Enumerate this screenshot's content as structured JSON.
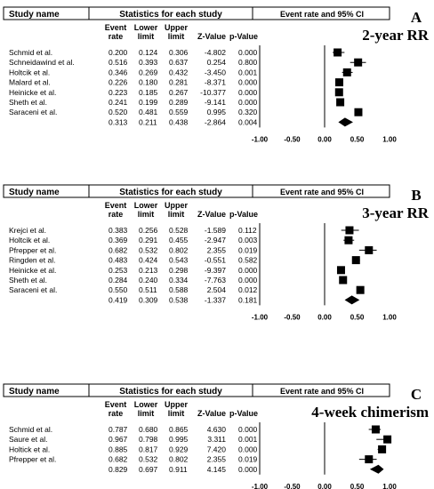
{
  "headers": {
    "study_name": "Study name",
    "stats": "Statistics for each study",
    "plot": "Event rate and 95% CI",
    "event_rate": [
      "Event",
      "rate"
    ],
    "lower_limit": [
      "Lower",
      "limit"
    ],
    "upper_limit": [
      "Upper",
      "limit"
    ],
    "z_value": "Z-Value",
    "p_value": "p-Value"
  },
  "chart_data": [
    {
      "type": "forest",
      "panel": "A",
      "title": "2-year RR",
      "ticks": [
        "-1.00",
        "-0.50",
        "0.00",
        "0.50",
        "1.00"
      ],
      "xlim": [
        -1,
        1
      ],
      "studies": [
        {
          "name": "Schmid et al.",
          "er": "0.200",
          "ll": "0.124",
          "ul": "0.306",
          "z": "-4.802",
          "p": "0.000"
        },
        {
          "name": "Schneidawind et al.",
          "er": "0.516",
          "ll": "0.393",
          "ul": "0.637",
          "z": "0.254",
          "p": "0.800"
        },
        {
          "name": "Holtcik et al.",
          "er": "0.346",
          "ll": "0.269",
          "ul": "0.432",
          "z": "-3.450",
          "p": "0.001"
        },
        {
          "name": "Malard et al.",
          "er": "0.226",
          "ll": "0.180",
          "ul": "0.281",
          "z": "-8.371",
          "p": "0.000"
        },
        {
          "name": "Heinicke et al.",
          "er": "0.223",
          "ll": "0.185",
          "ul": "0.267",
          "z": "-10.377",
          "p": "0.000"
        },
        {
          "name": "Sheth et al.",
          "er": "0.241",
          "ll": "0.199",
          "ul": "0.289",
          "z": "-9.141",
          "p": "0.000"
        },
        {
          "name": "Saraceni et al.",
          "er": "0.520",
          "ll": "0.481",
          "ul": "0.559",
          "z": "0.995",
          "p": "0.320"
        }
      ],
      "summary": {
        "er": "0.313",
        "ll": "0.211",
        "ul": "0.438",
        "z": "-2.864",
        "p": "0.004"
      }
    },
    {
      "type": "forest",
      "panel": "B",
      "title": "3-year RR",
      "ticks": [
        "-1.00",
        "-0.50",
        "0.00",
        "0.50",
        "1.00"
      ],
      "xlim": [
        -1,
        1
      ],
      "studies": [
        {
          "name": "Krejci et al.",
          "er": "0.383",
          "ll": "0.256",
          "ul": "0.528",
          "z": "-1.589",
          "p": "0.112"
        },
        {
          "name": "Holtcik et al.",
          "er": "0.369",
          "ll": "0.291",
          "ul": "0.455",
          "z": "-2.947",
          "p": "0.003"
        },
        {
          "name": "Pfrepper et al.",
          "er": "0.682",
          "ll": "0.532",
          "ul": "0.802",
          "z": "2.355",
          "p": "0.019"
        },
        {
          "name": "Ringden et al.",
          "er": "0.483",
          "ll": "0.424",
          "ul": "0.543",
          "z": "-0.551",
          "p": "0.582"
        },
        {
          "name": "Heinicke et al.",
          "er": "0.253",
          "ll": "0.213",
          "ul": "0.298",
          "z": "-9.397",
          "p": "0.000"
        },
        {
          "name": "Sheth et al.",
          "er": "0.284",
          "ll": "0.240",
          "ul": "0.334",
          "z": "-7.763",
          "p": "0.000"
        },
        {
          "name": "Saraceni et al.",
          "er": "0.550",
          "ll": "0.511",
          "ul": "0.588",
          "z": "2.504",
          "p": "0.012"
        }
      ],
      "summary": {
        "er": "0.419",
        "ll": "0.309",
        "ul": "0.538",
        "z": "-1.337",
        "p": "0.181"
      }
    },
    {
      "type": "forest",
      "panel": "C",
      "title": "4-week chimerism",
      "ticks": [
        "-1.00",
        "-0.50",
        "0.00",
        "0.50",
        "1.00"
      ],
      "xlim": [
        -1,
        1
      ],
      "studies": [
        {
          "name": "Schmid et al.",
          "er": "0.787",
          "ll": "0.680",
          "ul": "0.865",
          "z": "4.630",
          "p": "0.000"
        },
        {
          "name": "Saure et al.",
          "er": "0.967",
          "ll": "0.798",
          "ul": "0.995",
          "z": "3.311",
          "p": "0.001"
        },
        {
          "name": "Holtick et al.",
          "er": "0.885",
          "ll": "0.817",
          "ul": "0.929",
          "z": "7.420",
          "p": "0.000"
        },
        {
          "name": "Pfrepper et al.",
          "er": "0.682",
          "ll": "0.532",
          "ul": "0.802",
          "z": "2.355",
          "p": "0.019"
        }
      ],
      "summary": {
        "er": "0.829",
        "ll": "0.697",
        "ul": "0.911",
        "z": "4.145",
        "p": "0.000"
      }
    }
  ]
}
